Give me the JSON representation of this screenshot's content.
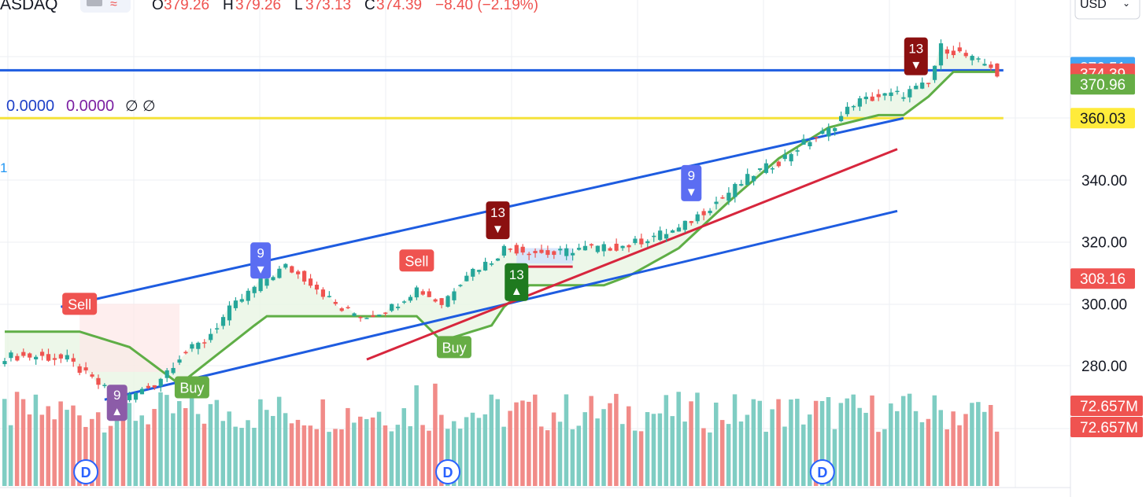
{
  "header": {
    "symbol": "ASDAQ",
    "o_label": "O",
    "o_val": "379.26",
    "h_label": "H",
    "h_val": "379.26",
    "l_label": "L",
    "l_val": "373.13",
    "c_label": "C",
    "c_val": "374.39",
    "change": "−8.40 (−2.19%)",
    "currency": "USD"
  },
  "indicator": {
    "v1": "0.0000",
    "v2": "0.0000",
    "v3": "∅",
    "v4": "∅",
    "left_digit": "1"
  },
  "colors": {
    "up": "#26a69a",
    "down": "#ef5350",
    "vol_up": "#7fcdc3",
    "vol_down": "#f18b88",
    "trend_blue": "#1e5ce0",
    "trend_red": "#d7263d",
    "support_green": "#5fae46",
    "yellow": "#f5e23a",
    "grid": "#eceff3"
  },
  "chart_data": {
    "type": "candlestick",
    "y_ticks": [
      "340.00",
      "320.00",
      "300.00",
      "280.00"
    ],
    "y_tick_values": [
      340,
      320,
      300,
      280
    ],
    "price_labels": [
      {
        "text": "376.51",
        "value": 376.51,
        "color": "#42a5f5"
      },
      {
        "text": "374.39",
        "value": 374.39,
        "color": "#ef5350"
      },
      {
        "text": "370.96",
        "value": 370.96,
        "color": "#66ad45"
      },
      {
        "text": "360.03",
        "value": 360.03,
        "color": "#ffeb3b"
      },
      {
        "text": "308.16",
        "value": 308.16,
        "color": "#ef5350"
      }
    ],
    "volume_labels": [
      {
        "text": "72.657M",
        "color": "#ef5350"
      },
      {
        "text": "72.657M",
        "color": "#ef5350"
      }
    ],
    "horizontal_lines": [
      {
        "value": 375.5,
        "color": "#1e5ce0"
      },
      {
        "value": 360.03,
        "color": "#f5e23a"
      }
    ],
    "signals": [
      {
        "text": "Sell",
        "kind": "sell",
        "index": 12,
        "price": 300
      },
      {
        "text": "Buy",
        "kind": "buy",
        "index": 30,
        "price": 273
      },
      {
        "text": "Sell",
        "kind": "sell",
        "index": 66,
        "price": 314
      },
      {
        "text": "Buy",
        "kind": "buy",
        "index": 72,
        "price": 286
      },
      {
        "text": "9",
        "kind": "up9",
        "index": 41,
        "price": 314
      },
      {
        "text": "9",
        "kind": "down9",
        "index": 18,
        "price": 268
      },
      {
        "text": "13",
        "kind": "sell13",
        "index": 79,
        "price": 327
      },
      {
        "text": "13",
        "kind": "buy13",
        "index": 82,
        "price": 307
      },
      {
        "text": "9",
        "kind": "up9",
        "index": 110,
        "price": 339
      },
      {
        "text": "13",
        "kind": "sell13",
        "index": 146,
        "price": 380
      }
    ],
    "dividends": [
      {
        "text": "D",
        "index": 13
      },
      {
        "text": "D",
        "index": 71
      },
      {
        "text": "D",
        "index": 131
      }
    ]
  }
}
